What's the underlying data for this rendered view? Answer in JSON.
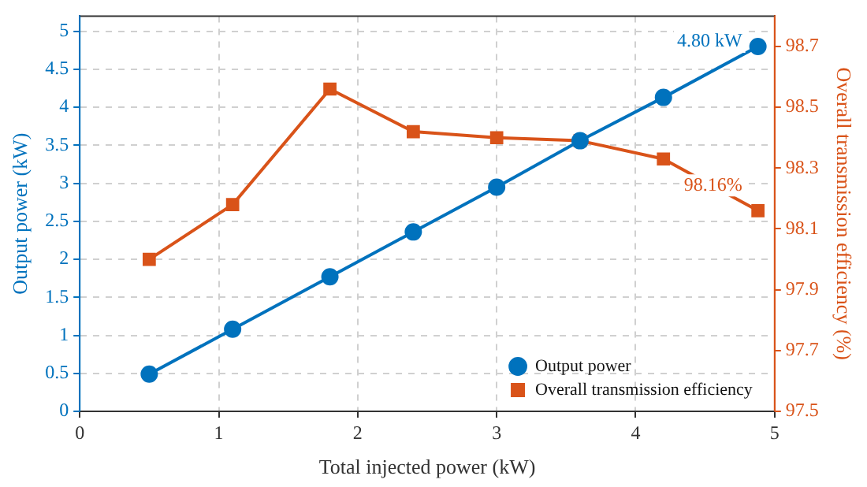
{
  "chart_data": {
    "type": "line",
    "xlabel": "Total injected power (kW)",
    "ylabel": "Output power (kW)",
    "y2label": "Overall transmission efficiency (%)",
    "x": [
      0.5,
      1.1,
      1.8,
      2.4,
      3.0,
      3.6,
      4.2,
      4.88
    ],
    "series": [
      {
        "name": "Output power",
        "color": "#0072bd",
        "marker": "circle",
        "values": [
          0.49,
          1.08,
          1.77,
          2.36,
          2.95,
          3.56,
          4.13,
          4.8
        ]
      },
      {
        "name": "Overall transmission efficiency",
        "color": "#d95319",
        "marker": "square",
        "axis": "y2",
        "values": [
          98.0,
          98.18,
          98.56,
          98.42,
          98.4,
          98.39,
          98.33,
          98.16
        ]
      }
    ],
    "xlim": [
      0,
      5
    ],
    "xticks": [
      0,
      1,
      2,
      3,
      4,
      5
    ],
    "ylim": [
      0,
      5.2
    ],
    "yticks": [
      0,
      0.5,
      1,
      1.5,
      2,
      2.5,
      3,
      3.5,
      4,
      4.5,
      5
    ],
    "y2lim": [
      97.5,
      98.8
    ],
    "y2ticks": [
      97.5,
      97.7,
      97.9,
      98.1,
      98.3,
      98.5,
      98.7
    ],
    "annotations": [
      "4.80 kW",
      "98.16%"
    ],
    "grid": true,
    "legend": "bottom right",
    "line_style": "solid"
  }
}
